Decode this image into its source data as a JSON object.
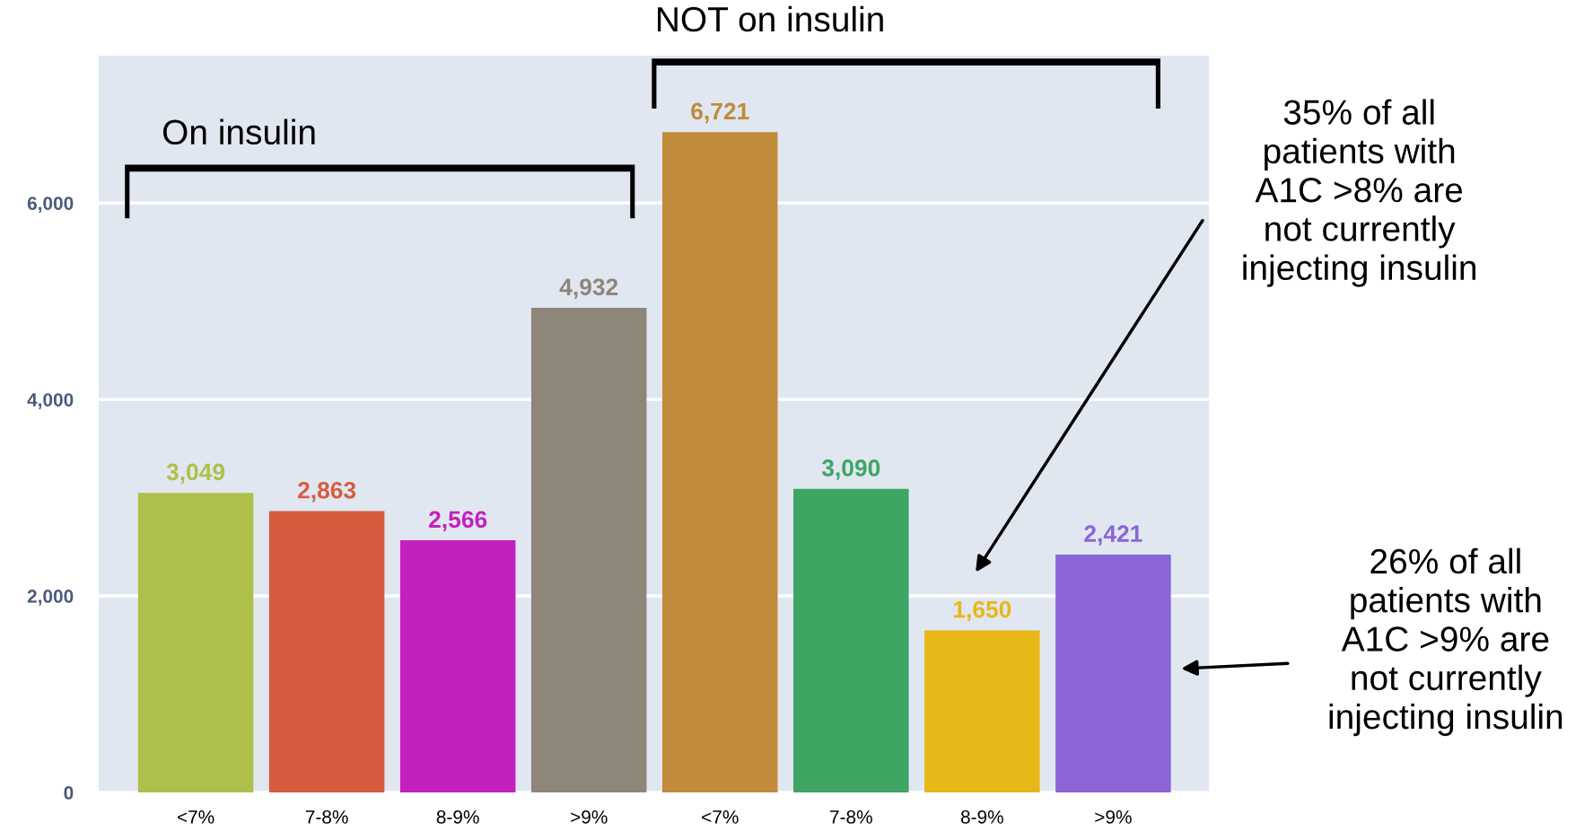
{
  "chart_data": {
    "type": "bar",
    "categories": [
      "<7%",
      "7-8%",
      "8-9%",
      ">9%",
      "<7%",
      "7-8%",
      "8-9%",
      ">9%"
    ],
    "values": [
      3049,
      2863,
      2566,
      4932,
      6721,
      3090,
      1650,
      2421
    ],
    "colors": [
      "#afc04a",
      "#d65c40",
      "#c41fbf",
      "#8f867a",
      "#c08b3a",
      "#3ea562",
      "#e8b718",
      "#8c65d6"
    ],
    "value_labels": [
      "3,049",
      "2,863",
      "2,566",
      "4,932",
      "6,721",
      "3,090",
      "1,650",
      "2,421"
    ],
    "ylim": [
      0,
      7500
    ],
    "yticks": [
      0,
      {
        "value": 2000,
        "label": "2,000"
      },
      {
        "value": 4000,
        "label": "4,000"
      },
      {
        "value": 6000,
        "label": "6,000"
      }
    ],
    "grid": "y",
    "annotations": [
      "On insulin",
      "NOT on insulin",
      "35% of all\npatients with\nA1C >8% are\nnot currently\ninjecting insulin",
      "26% of all\npatients with\nA1C >9% are\nnot currently\ninjecting insulin"
    ]
  }
}
